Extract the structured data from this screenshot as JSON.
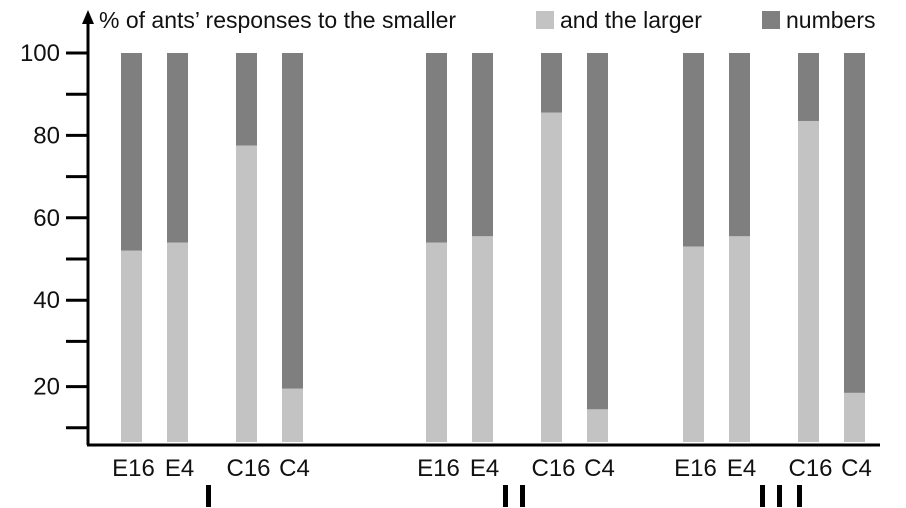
{
  "chart_data": {
    "type": "bar",
    "stacked": true,
    "title": "% of ants’ responses to the smaller",
    "legend": [
      {
        "name": "and the larger",
        "color": "#c3c3c3"
      },
      {
        "name": "numbers",
        "color": "#7f7f7f"
      }
    ],
    "y_ticks": [
      "100",
      "80",
      "60",
      "40",
      "20"
    ],
    "ylim": [
      5,
      100
    ],
    "groups": [
      {
        "label": "I",
        "bars": [
          {
            "label": "E16",
            "smaller": 52,
            "larger": 48
          },
          {
            "label": "E4",
            "smaller": 54,
            "larger": 46
          },
          {
            "label": "C16",
            "smaller": 77.5,
            "larger": 22.5
          },
          {
            "label": "C4",
            "smaller": 18.5,
            "larger": 81.5
          }
        ]
      },
      {
        "label": "II",
        "bars": [
          {
            "label": "E16",
            "smaller": 54,
            "larger": 46
          },
          {
            "label": "E4",
            "smaller": 55.5,
            "larger": 44.5
          },
          {
            "label": "C16",
            "smaller": 85.5,
            "larger": 14.5
          },
          {
            "label": "C4",
            "smaller": 13.5,
            "larger": 86.5
          }
        ]
      },
      {
        "label": "III",
        "bars": [
          {
            "label": "E16",
            "smaller": 53,
            "larger": 47
          },
          {
            "label": "E4",
            "smaller": 55.5,
            "larger": 44.5
          },
          {
            "label": "C16",
            "smaller": 83.5,
            "larger": 16.5
          },
          {
            "label": "C4",
            "smaller": 17.5,
            "larger": 82.5
          }
        ]
      }
    ]
  }
}
